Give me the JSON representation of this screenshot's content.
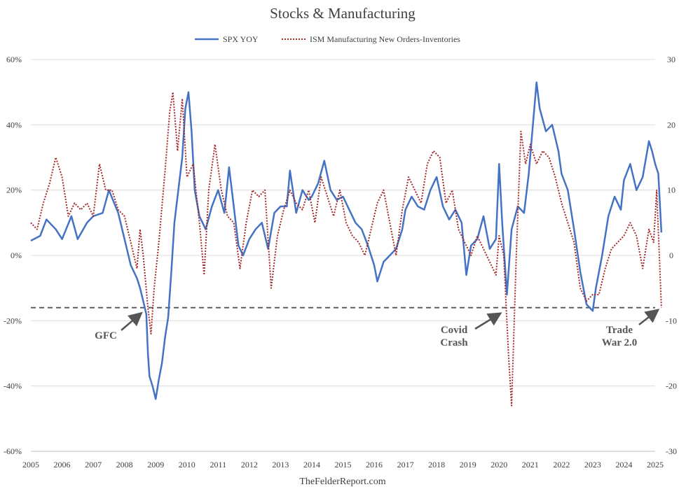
{
  "chart_data": {
    "type": "line",
    "title": "Stocks & Manufacturing",
    "source": "TheFelderReport.com",
    "x_ticks": [
      "2005",
      "2006",
      "2007",
      "2008",
      "2009",
      "2010",
      "2011",
      "2012",
      "2013",
      "2014",
      "2015",
      "2016",
      "2017",
      "2018",
      "2019",
      "2020",
      "2021",
      "2022",
      "2023",
      "2024",
      "2025"
    ],
    "x_range": [
      2005,
      2025.2
    ],
    "y_left": {
      "range": [
        -60,
        60
      ],
      "ticks": [
        60,
        40,
        20,
        0,
        -20,
        -40,
        -60
      ],
      "tick_labels": [
        "60%",
        "40%",
        "20%",
        "0%",
        "-20%",
        "-40%",
        "-60%"
      ]
    },
    "y_right": {
      "range": [
        -30,
        30
      ],
      "ticks": [
        30,
        20,
        10,
        0,
        -10,
        -20,
        -30
      ],
      "tick_labels": [
        "30",
        "20",
        "10",
        "0",
        "-10",
        "-20",
        "-30"
      ]
    },
    "grid": "horizontal",
    "legend_position": "top-center",
    "reference_line": {
      "axis": "left",
      "value": -16,
      "style": "dashed"
    },
    "series": [
      {
        "name": "SPX YOY",
        "axis": "left",
        "color": "#4472c4",
        "style": "solid",
        "points": [
          [
            2005.0,
            4.5
          ],
          [
            2005.3,
            6
          ],
          [
            2005.5,
            11
          ],
          [
            2005.8,
            8
          ],
          [
            2006.0,
            5
          ],
          [
            2006.3,
            12
          ],
          [
            2006.5,
            5
          ],
          [
            2006.8,
            10
          ],
          [
            2007.0,
            12
          ],
          [
            2007.3,
            13
          ],
          [
            2007.5,
            20
          ],
          [
            2007.8,
            13
          ],
          [
            2008.0,
            5
          ],
          [
            2008.2,
            -3
          ],
          [
            2008.4,
            -7
          ],
          [
            2008.5,
            -10
          ],
          [
            2008.6,
            -14
          ],
          [
            2008.7,
            -18
          ],
          [
            2008.75,
            -30
          ],
          [
            2008.8,
            -37
          ],
          [
            2008.9,
            -40
          ],
          [
            2009.0,
            -44
          ],
          [
            2009.1,
            -38
          ],
          [
            2009.2,
            -33
          ],
          [
            2009.3,
            -25
          ],
          [
            2009.4,
            -19
          ],
          [
            2009.5,
            -5
          ],
          [
            2009.6,
            10
          ],
          [
            2009.75,
            22
          ],
          [
            2009.85,
            30
          ],
          [
            2009.95,
            45
          ],
          [
            2010.05,
            50
          ],
          [
            2010.15,
            38
          ],
          [
            2010.25,
            20
          ],
          [
            2010.4,
            12
          ],
          [
            2010.6,
            8
          ],
          [
            2010.8,
            15
          ],
          [
            2011.0,
            20
          ],
          [
            2011.2,
            13
          ],
          [
            2011.35,
            27
          ],
          [
            2011.5,
            15
          ],
          [
            2011.65,
            3
          ],
          [
            2011.8,
            0
          ],
          [
            2012.0,
            5
          ],
          [
            2012.2,
            8
          ],
          [
            2012.4,
            10
          ],
          [
            2012.6,
            2
          ],
          [
            2012.8,
            13
          ],
          [
            2013.0,
            15
          ],
          [
            2013.2,
            15
          ],
          [
            2013.3,
            26
          ],
          [
            2013.5,
            13
          ],
          [
            2013.7,
            20
          ],
          [
            2013.9,
            17
          ],
          [
            2014.0,
            18
          ],
          [
            2014.2,
            22
          ],
          [
            2014.4,
            29
          ],
          [
            2014.6,
            20
          ],
          [
            2014.8,
            17
          ],
          [
            2015.0,
            18
          ],
          [
            2015.2,
            14
          ],
          [
            2015.4,
            10
          ],
          [
            2015.6,
            8
          ],
          [
            2015.8,
            3
          ],
          [
            2016.0,
            -3
          ],
          [
            2016.1,
            -8
          ],
          [
            2016.3,
            -2
          ],
          [
            2016.5,
            0
          ],
          [
            2016.7,
            2
          ],
          [
            2016.9,
            8
          ],
          [
            2017.0,
            14
          ],
          [
            2017.2,
            18
          ],
          [
            2017.4,
            15
          ],
          [
            2017.6,
            14
          ],
          [
            2017.8,
            20
          ],
          [
            2018.0,
            24
          ],
          [
            2018.2,
            15
          ],
          [
            2018.4,
            11
          ],
          [
            2018.6,
            14
          ],
          [
            2018.8,
            10
          ],
          [
            2018.95,
            -6
          ],
          [
            2019.1,
            3
          ],
          [
            2019.3,
            5
          ],
          [
            2019.5,
            12
          ],
          [
            2019.7,
            2
          ],
          [
            2019.9,
            5
          ],
          [
            2020.0,
            28
          ],
          [
            2020.1,
            10
          ],
          [
            2020.25,
            -12
          ],
          [
            2020.4,
            8
          ],
          [
            2020.6,
            15
          ],
          [
            2020.8,
            13
          ],
          [
            2020.95,
            25
          ],
          [
            2021.1,
            42
          ],
          [
            2021.2,
            53
          ],
          [
            2021.3,
            45
          ],
          [
            2021.5,
            38
          ],
          [
            2021.7,
            40
          ],
          [
            2021.9,
            32
          ],
          [
            2022.0,
            25
          ],
          [
            2022.2,
            20
          ],
          [
            2022.4,
            8
          ],
          [
            2022.6,
            -5
          ],
          [
            2022.8,
            -15
          ],
          [
            2023.0,
            -17
          ],
          [
            2023.1,
            -10
          ],
          [
            2023.3,
            0
          ],
          [
            2023.5,
            12
          ],
          [
            2023.7,
            18
          ],
          [
            2023.9,
            14
          ],
          [
            2024.0,
            23
          ],
          [
            2024.2,
            28
          ],
          [
            2024.4,
            20
          ],
          [
            2024.6,
            24
          ],
          [
            2024.8,
            35
          ],
          [
            2024.9,
            32
          ],
          [
            2025.0,
            28
          ],
          [
            2025.1,
            25
          ],
          [
            2025.2,
            7
          ]
        ]
      },
      {
        "name": "ISM Manufacturing New Orders-Inventories",
        "axis": "right",
        "color": "#a52a2a",
        "style": "dotted",
        "points": [
          [
            2005.0,
            5
          ],
          [
            2005.2,
            4
          ],
          [
            2005.4,
            8
          ],
          [
            2005.6,
            11
          ],
          [
            2005.8,
            15
          ],
          [
            2006.0,
            12
          ],
          [
            2006.2,
            6
          ],
          [
            2006.4,
            8
          ],
          [
            2006.6,
            7
          ],
          [
            2006.8,
            8
          ],
          [
            2007.0,
            6
          ],
          [
            2007.2,
            14
          ],
          [
            2007.4,
            10
          ],
          [
            2007.6,
            10
          ],
          [
            2007.8,
            7
          ],
          [
            2008.0,
            6
          ],
          [
            2008.2,
            2
          ],
          [
            2008.4,
            -2
          ],
          [
            2008.5,
            4
          ],
          [
            2008.6,
            0
          ],
          [
            2008.75,
            -8
          ],
          [
            2008.85,
            -12
          ],
          [
            2008.95,
            -5
          ],
          [
            2009.1,
            2
          ],
          [
            2009.3,
            13
          ],
          [
            2009.45,
            22
          ],
          [
            2009.55,
            25
          ],
          [
            2009.7,
            16
          ],
          [
            2009.85,
            24
          ],
          [
            2010.0,
            12
          ],
          [
            2010.2,
            14
          ],
          [
            2010.4,
            5
          ],
          [
            2010.55,
            -3
          ],
          [
            2010.7,
            10
          ],
          [
            2010.9,
            17
          ],
          [
            2011.1,
            10
          ],
          [
            2011.3,
            6
          ],
          [
            2011.5,
            5
          ],
          [
            2011.7,
            -2
          ],
          [
            2011.9,
            5
          ],
          [
            2012.1,
            10
          ],
          [
            2012.3,
            9
          ],
          [
            2012.5,
            10
          ],
          [
            2012.7,
            -5
          ],
          [
            2012.9,
            3
          ],
          [
            2013.1,
            7
          ],
          [
            2013.3,
            10
          ],
          [
            2013.5,
            8
          ],
          [
            2013.7,
            7
          ],
          [
            2013.9,
            10
          ],
          [
            2014.1,
            5
          ],
          [
            2014.3,
            12
          ],
          [
            2014.5,
            9
          ],
          [
            2014.7,
            6
          ],
          [
            2014.9,
            10
          ],
          [
            2015.1,
            5
          ],
          [
            2015.3,
            3
          ],
          [
            2015.5,
            2
          ],
          [
            2015.7,
            0
          ],
          [
            2015.9,
            4
          ],
          [
            2016.1,
            8
          ],
          [
            2016.3,
            10
          ],
          [
            2016.5,
            5
          ],
          [
            2016.7,
            0
          ],
          [
            2016.9,
            7
          ],
          [
            2017.1,
            12
          ],
          [
            2017.3,
            10
          ],
          [
            2017.5,
            8
          ],
          [
            2017.7,
            14
          ],
          [
            2017.9,
            16
          ],
          [
            2018.1,
            15
          ],
          [
            2018.3,
            8
          ],
          [
            2018.5,
            10
          ],
          [
            2018.7,
            4
          ],
          [
            2018.9,
            2
          ],
          [
            2019.1,
            0
          ],
          [
            2019.3,
            3
          ],
          [
            2019.5,
            1
          ],
          [
            2019.7,
            -1
          ],
          [
            2019.9,
            -3
          ],
          [
            2020.0,
            3
          ],
          [
            2020.15,
            0
          ],
          [
            2020.3,
            -15
          ],
          [
            2020.4,
            -23
          ],
          [
            2020.55,
            0
          ],
          [
            2020.7,
            19
          ],
          [
            2020.85,
            14
          ],
          [
            2021.0,
            17
          ],
          [
            2021.2,
            14
          ],
          [
            2021.4,
            16
          ],
          [
            2021.6,
            15
          ],
          [
            2021.8,
            12
          ],
          [
            2022.0,
            8
          ],
          [
            2022.2,
            5
          ],
          [
            2022.4,
            2
          ],
          [
            2022.6,
            -5
          ],
          [
            2022.8,
            -7
          ],
          [
            2023.0,
            -6
          ],
          [
            2023.2,
            -6
          ],
          [
            2023.4,
            -2
          ],
          [
            2023.6,
            1
          ],
          [
            2023.8,
            2
          ],
          [
            2024.0,
            3
          ],
          [
            2024.2,
            5
          ],
          [
            2024.4,
            3
          ],
          [
            2024.6,
            -2
          ],
          [
            2024.8,
            4
          ],
          [
            2024.95,
            2
          ],
          [
            2025.05,
            10
          ],
          [
            2025.2,
            -8
          ]
        ]
      }
    ],
    "annotations": [
      {
        "text": "GFC",
        "lines": [
          "GFC"
        ],
        "arrow_to": [
          2008.5,
          -18
        ]
      },
      {
        "text": "Covid Crash",
        "lines": [
          "Covid",
          "Crash"
        ],
        "arrow_to": [
          2020.0,
          -18
        ]
      },
      {
        "text": "Trade War 2.0",
        "lines": [
          "Trade",
          "War 2.0"
        ],
        "arrow_to": [
          2025.05,
          -17
        ]
      }
    ]
  }
}
